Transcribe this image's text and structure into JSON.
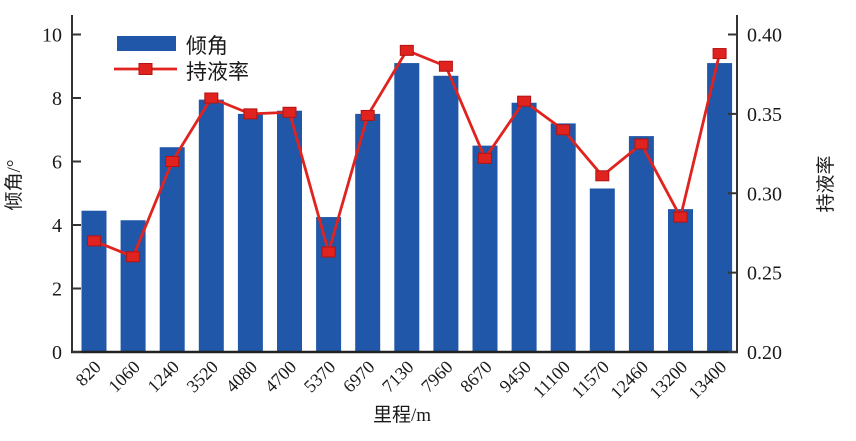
{
  "chart_data": {
    "type": "bar+line",
    "title": "",
    "categories": [
      "820",
      "1060",
      "1240",
      "3520",
      "4080",
      "4700",
      "5370",
      "6970",
      "7130",
      "7960",
      "8670",
      "9450",
      "11100",
      "11570",
      "12460",
      "13200",
      "13400"
    ],
    "series": [
      {
        "name": "倾角",
        "type": "bar",
        "axis": "left",
        "color": "#2057A8",
        "values": [
          4.45,
          4.15,
          6.45,
          7.95,
          7.5,
          7.6,
          4.25,
          7.5,
          9.1,
          8.7,
          6.5,
          7.85,
          7.2,
          5.15,
          6.8,
          4.5,
          9.1
        ]
      },
      {
        "name": "持液率",
        "type": "line",
        "axis": "right",
        "color": "#E0231E",
        "marker": "square",
        "marker_border_color": "#B31312",
        "values": [
          0.27,
          0.26,
          0.32,
          0.36,
          0.35,
          0.351,
          0.263,
          0.349,
          0.39,
          0.38,
          0.322,
          0.358,
          0.34,
          0.311,
          0.331,
          0.285,
          0.388
        ]
      }
    ],
    "axes": {
      "x": {
        "label": "里程/m"
      },
      "left": {
        "label": "倾角/°",
        "min": 0,
        "max": 10,
        "ticks": [
          "0",
          "2",
          "4",
          "6",
          "8",
          "10"
        ]
      },
      "right": {
        "label": "持液率",
        "min": 0.2,
        "max": 0.4,
        "ticks": [
          "0.20",
          "0.25",
          "0.30",
          "0.35",
          "0.40"
        ]
      }
    },
    "legend": {
      "position": "top-left-inside"
    },
    "grid": "off",
    "spine_color": "#333333",
    "text_color": "#1a1a1a"
  }
}
